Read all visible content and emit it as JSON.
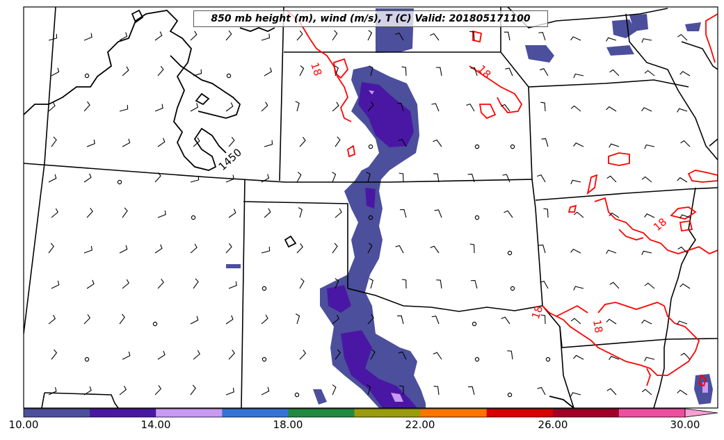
{
  "title": "850 mb height (m), wind (m/s), T (C) Valid: 201805171100",
  "contours": {
    "height_label": "1450",
    "temp_labels": [
      "18",
      "18",
      "18",
      "18",
      "18"
    ],
    "height_color": "#000000",
    "temp_color": "#ff0000"
  },
  "colorbar": {
    "labels": [
      "10.00",
      "14.00",
      "18.00",
      "22.00",
      "26.00",
      "30.00"
    ],
    "colors": [
      "#4b4f9c",
      "#4a17a5",
      "#c89af2",
      "#3374d6",
      "#1f8a40",
      "#9a9c0c",
      "#ff7403",
      "#d70202",
      "#a10126",
      "#ee4ea0",
      "#f6a0d4"
    ]
  },
  "wind_barbs": {
    "color": "#000000",
    "calm_symbol": "circle"
  }
}
